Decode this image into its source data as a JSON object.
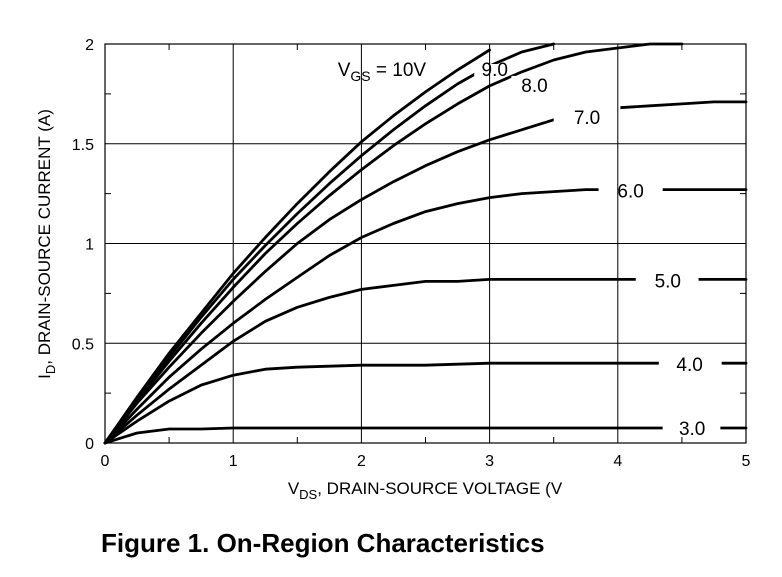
{
  "caption": "Figure 1. On-Region Characteristics",
  "chart_data": {
    "type": "line",
    "title": "",
    "xlabel": "VDS, DRAIN-SOURCE VOLTAGE (V",
    "xlabel_main": "V",
    "xlabel_sub": "DS",
    "xlabel_rest": ", DRAIN-SOURCE VOLTAGE (V",
    "ylabel": "ID, DRAIN-SOURCE CURRENT (A)",
    "ylabel_main": "I",
    "ylabel_sub": "D",
    "ylabel_rest": ", DRAIN-SOURCE CURRENT (A)",
    "xlim": [
      0,
      5
    ],
    "ylim": [
      0,
      2
    ],
    "xticks": [
      0,
      1,
      2,
      3,
      4,
      5
    ],
    "xtick_labels": [
      "0",
      "1",
      "2",
      "3",
      "4",
      "5"
    ],
    "yticks": [
      0,
      0.5,
      1,
      1.5,
      2
    ],
    "ytick_labels": [
      "0",
      "0.5",
      "1",
      "1.5",
      "2"
    ],
    "grid": true,
    "series": [
      {
        "name": "VGS = 10V",
        "label_main": "V",
        "label_sub": "GS",
        "label_rest": " = 10V",
        "x": [
          0,
          0.25,
          0.5,
          0.75,
          1,
          1.25,
          1.5,
          1.75,
          2,
          2.25,
          2.5,
          2.75,
          3
        ],
        "y": [
          0,
          0.23,
          0.45,
          0.65,
          0.85,
          1.03,
          1.2,
          1.36,
          1.51,
          1.64,
          1.76,
          1.87,
          1.97
        ]
      },
      {
        "name": "9.0",
        "label_main": "9.0",
        "x": [
          0,
          0.25,
          0.5,
          0.75,
          1,
          1.25,
          1.5,
          1.75,
          2,
          2.25,
          2.5,
          2.75,
          3,
          3.25,
          3.5
        ],
        "y": [
          0,
          0.22,
          0.43,
          0.63,
          0.82,
          0.99,
          1.15,
          1.3,
          1.44,
          1.57,
          1.69,
          1.8,
          1.89,
          1.96,
          2.0
        ]
      },
      {
        "name": "8.0",
        "label_main": "8.0",
        "x": [
          0,
          0.25,
          0.5,
          0.75,
          1,
          1.25,
          1.5,
          1.75,
          2,
          2.25,
          2.5,
          2.75,
          3,
          3.25,
          3.5,
          3.75,
          4,
          4.25,
          4.5
        ],
        "y": [
          0,
          0.21,
          0.41,
          0.6,
          0.78,
          0.95,
          1.1,
          1.24,
          1.37,
          1.49,
          1.6,
          1.7,
          1.79,
          1.86,
          1.92,
          1.96,
          1.98,
          2.0,
          2.0
        ]
      },
      {
        "name": "7.0",
        "label_main": "7.0",
        "x": [
          0,
          0.25,
          0.5,
          0.75,
          1,
          1.25,
          1.5,
          1.75,
          2,
          2.25,
          2.5,
          2.75,
          3,
          3.25,
          3.5,
          3.75,
          4,
          4.25,
          4.5,
          4.75,
          5
        ],
        "y": [
          0,
          0.2,
          0.38,
          0.55,
          0.71,
          0.86,
          1.0,
          1.12,
          1.22,
          1.31,
          1.39,
          1.46,
          1.52,
          1.57,
          1.62,
          1.65,
          1.68,
          1.69,
          1.7,
          1.71,
          1.71
        ]
      },
      {
        "name": "6.0",
        "label_main": "6.0",
        "x": [
          0,
          0.25,
          0.5,
          0.75,
          1,
          1.25,
          1.5,
          1.75,
          2,
          2.25,
          2.5,
          2.75,
          3,
          3.25,
          3.5,
          3.75,
          4,
          4.5,
          5
        ],
        "y": [
          0,
          0.17,
          0.33,
          0.47,
          0.6,
          0.72,
          0.83,
          0.94,
          1.03,
          1.1,
          1.16,
          1.2,
          1.23,
          1.25,
          1.26,
          1.27,
          1.27,
          1.27,
          1.27
        ]
      },
      {
        "name": "5.0",
        "label_main": "5.0",
        "x": [
          0,
          0.25,
          0.5,
          0.75,
          1,
          1.25,
          1.5,
          1.75,
          2,
          2.25,
          2.5,
          2.75,
          3,
          3.5,
          4,
          4.5,
          5
        ],
        "y": [
          0,
          0.14,
          0.27,
          0.39,
          0.51,
          0.61,
          0.68,
          0.73,
          0.77,
          0.79,
          0.81,
          0.81,
          0.82,
          0.82,
          0.82,
          0.82,
          0.82
        ]
      },
      {
        "name": "4.0",
        "label_main": "4.0",
        "x": [
          0,
          0.25,
          0.5,
          0.75,
          1,
          1.25,
          1.5,
          1.75,
          2,
          2.5,
          3,
          3.5,
          4,
          4.5,
          5
        ],
        "y": [
          0,
          0.11,
          0.21,
          0.29,
          0.34,
          0.37,
          0.38,
          0.385,
          0.39,
          0.39,
          0.4,
          0.4,
          0.4,
          0.4,
          0.4
        ]
      },
      {
        "name": "3.0",
        "label_main": "3.0",
        "x": [
          0,
          0.25,
          0.5,
          0.75,
          1,
          1.5,
          2,
          3,
          4,
          5
        ],
        "y": [
          0,
          0.05,
          0.07,
          0.07,
          0.075,
          0.075,
          0.075,
          0.075,
          0.075,
          0.075
        ]
      }
    ]
  }
}
